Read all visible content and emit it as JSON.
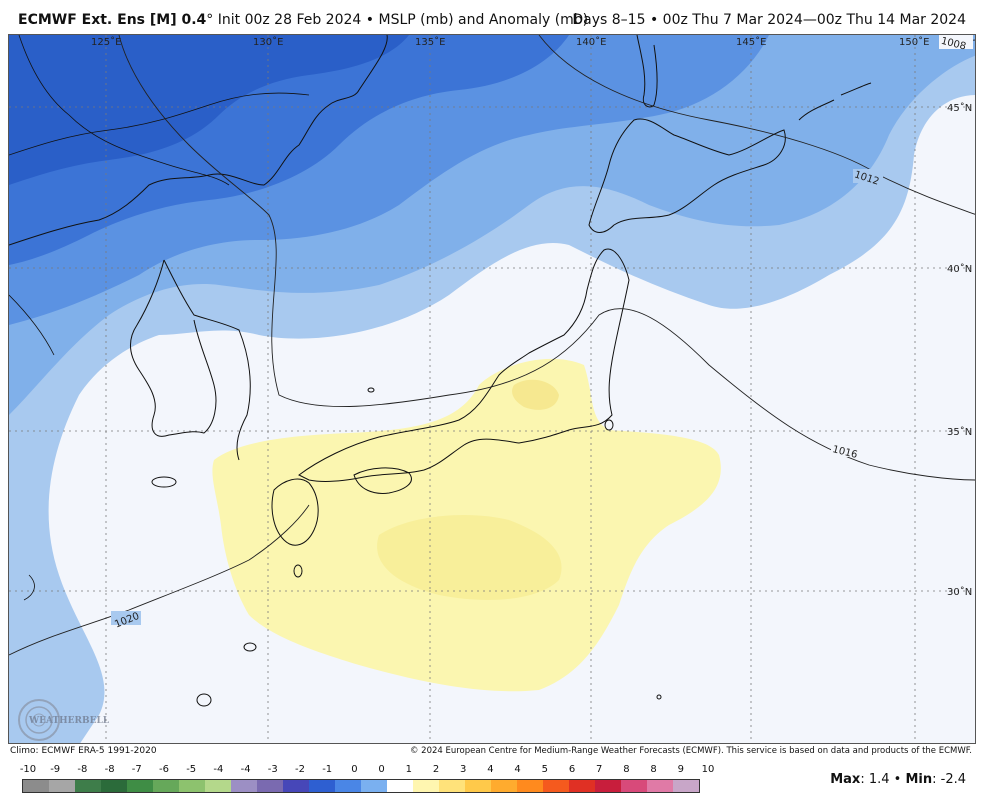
{
  "header": {
    "model": "ECMWF Ext. Ens [M] 0.4",
    "degree": "°",
    "init": "Init 00z 28 Feb 2024",
    "bullet": "•",
    "variable": "MSLP (mb) and Anomaly (mb)",
    "valid": "Days 8–15 • 00z Thu 7 Mar 2024—00z Thu 14 Mar 2024"
  },
  "map": {
    "lon_labels": [
      "125˚E",
      "130˚E",
      "135˚E",
      "140˚E",
      "145˚E",
      "150˚E"
    ],
    "lat_labels": [
      "45˚N",
      "40˚N",
      "35˚N",
      "30˚N"
    ],
    "isobars": [
      "1008",
      "1012",
      "1016",
      "1020"
    ],
    "watermark": "WEATHERBELL"
  },
  "footer": {
    "climo": "Climo: ECMWF ERA-5 1991-2020",
    "copyright": "© 2024 European Centre for Medium-Range Weather Forecasts (ECMWF). This service is based on data and products of the ECMWF."
  },
  "legend": {
    "labels": [
      "-10",
      "-9",
      "-8",
      "-8",
      "-7",
      "-6",
      "-5",
      "-4",
      "-4",
      "-3",
      "-2",
      "-1",
      "0",
      "0",
      "1",
      "2",
      "3",
      "4",
      "4",
      "5",
      "6",
      "7",
      "8",
      "8",
      "9",
      "10"
    ],
    "colors": [
      "#8c8c8c",
      "#a6a6a6",
      "#3e7d4a",
      "#2b6b3a",
      "#3f8d45",
      "#66a85a",
      "#8dc26e",
      "#b4d88b",
      "#9c8fc4",
      "#7a6ab0",
      "#4747b8",
      "#2e5fd1",
      "#4a86e6",
      "#7ab0f0",
      "#ffffff",
      "#fff6b0",
      "#ffe27a",
      "#ffc94a",
      "#ffab2e",
      "#ff8a1e",
      "#f55a1e",
      "#e03024",
      "#c81e3c",
      "#d84a7a",
      "#e07aa6",
      "#c8a6c8"
    ]
  },
  "stats": {
    "max_label": "Max",
    "max_value": "1.4",
    "min_label": "Min",
    "min_value": "-2.4"
  }
}
